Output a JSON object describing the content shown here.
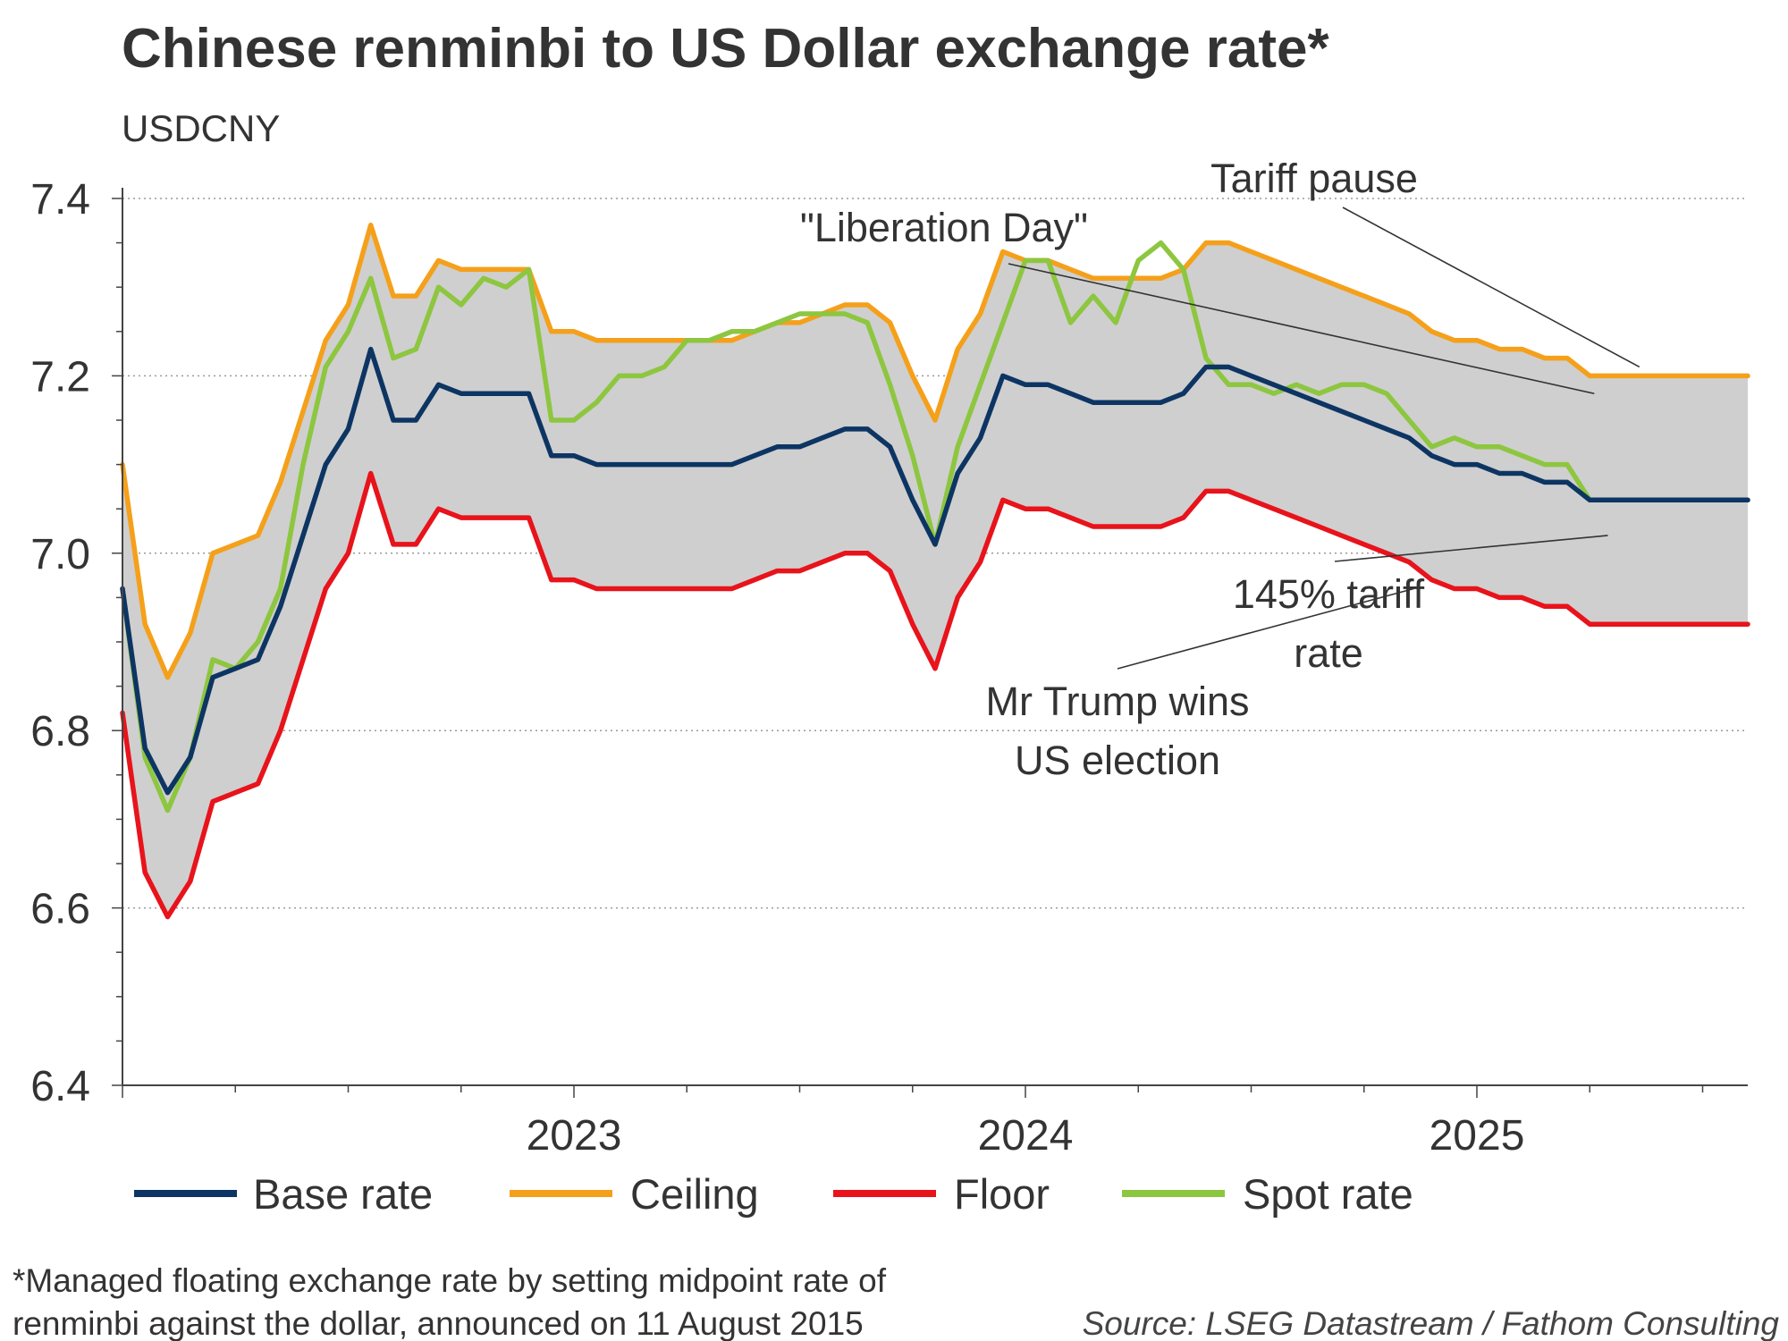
{
  "chart_data": {
    "type": "line",
    "title": "Chinese renminbi to US Dollar exchange rate*",
    "subtitle": "USDCNY",
    "xlabel": "",
    "ylabel": "",
    "ylim": [
      6.4,
      7.4
    ],
    "y_ticks": [
      "6.4",
      "6.6",
      "6.8",
      "7.0",
      "7.2",
      "7.4"
    ],
    "x_ticks": [
      "2023",
      "2024",
      "2025"
    ],
    "x_range": [
      2022.0,
      2025.6
    ],
    "grid": "horizontal dotted",
    "legend_position": "bottom",
    "fill_between": [
      "Floor",
      "Ceiling"
    ],
    "colors": {
      "base": "#0d3563",
      "ceiling": "#f5a01a",
      "floor": "#e8131b",
      "spot": "#8dc63f",
      "band": "#cfcfcf",
      "grid": "#9a9a9a",
      "axis": "#444444",
      "text": "#333333"
    },
    "x": [
      2022.0,
      2022.05,
      2022.1,
      2022.15,
      2022.2,
      2022.25,
      2022.3,
      2022.35,
      2022.4,
      2022.45,
      2022.5,
      2022.55,
      2022.6,
      2022.65,
      2022.7,
      2022.75,
      2022.8,
      2022.85,
      2022.9,
      2022.95,
      2023.0,
      2023.05,
      2023.1,
      2023.15,
      2023.2,
      2023.25,
      2023.3,
      2023.35,
      2023.4,
      2023.45,
      2023.5,
      2023.55,
      2023.6,
      2023.65,
      2023.7,
      2023.75,
      2023.8,
      2023.85,
      2023.9,
      2023.95,
      2024.0,
      2024.05,
      2024.1,
      2024.15,
      2024.2,
      2024.25,
      2024.3,
      2024.35,
      2024.4,
      2024.45,
      2024.5,
      2024.55,
      2024.6,
      2024.65,
      2024.7,
      2024.75,
      2024.8,
      2024.85,
      2024.9,
      2024.95,
      2025.0,
      2025.05,
      2025.1,
      2025.15,
      2025.2,
      2025.25,
      2025.3,
      2025.35,
      2025.4,
      2025.45,
      2025.5,
      2025.55,
      2025.6
    ],
    "series": [
      {
        "name": "Base rate",
        "color": "#0d3563",
        "values": [
          6.96,
          6.78,
          6.73,
          6.77,
          6.86,
          6.87,
          6.88,
          6.94,
          7.02,
          7.1,
          7.14,
          7.23,
          7.15,
          7.15,
          7.19,
          7.18,
          7.18,
          7.18,
          7.18,
          7.11,
          7.11,
          7.1,
          7.1,
          7.1,
          7.1,
          7.1,
          7.1,
          7.1,
          7.11,
          7.12,
          7.12,
          7.13,
          7.14,
          7.14,
          7.12,
          7.06,
          7.01,
          7.09,
          7.13,
          7.2,
          7.19,
          7.19,
          7.18,
          7.17,
          7.17,
          7.17,
          7.17,
          7.18,
          7.21,
          7.21,
          7.2,
          7.19,
          7.18,
          7.17,
          7.16,
          7.15,
          7.14,
          7.13,
          7.11,
          7.1,
          7.1,
          7.09,
          7.09,
          7.08,
          7.08,
          7.06,
          7.06,
          7.06,
          7.06,
          7.06,
          7.06,
          7.06,
          7.06
        ]
      },
      {
        "name": "Ceiling",
        "color": "#f5a01a",
        "values": [
          7.1,
          6.92,
          6.86,
          6.91,
          7.0,
          7.01,
          7.02,
          7.08,
          7.16,
          7.24,
          7.28,
          7.37,
          7.29,
          7.29,
          7.33,
          7.32,
          7.32,
          7.32,
          7.32,
          7.25,
          7.25,
          7.24,
          7.24,
          7.24,
          7.24,
          7.24,
          7.24,
          7.24,
          7.25,
          7.26,
          7.26,
          7.27,
          7.28,
          7.28,
          7.26,
          7.2,
          7.15,
          7.23,
          7.27,
          7.34,
          7.33,
          7.33,
          7.32,
          7.31,
          7.31,
          7.31,
          7.31,
          7.32,
          7.35,
          7.35,
          7.34,
          7.33,
          7.32,
          7.31,
          7.3,
          7.29,
          7.28,
          7.27,
          7.25,
          7.24,
          7.24,
          7.23,
          7.23,
          7.22,
          7.22,
          7.2,
          7.2,
          7.2,
          7.2,
          7.2,
          7.2,
          7.2,
          7.2
        ]
      },
      {
        "name": "Floor",
        "color": "#e8131b",
        "values": [
          6.82,
          6.64,
          6.59,
          6.63,
          6.72,
          6.73,
          6.74,
          6.8,
          6.88,
          6.96,
          7.0,
          7.09,
          7.01,
          7.01,
          7.05,
          7.04,
          7.04,
          7.04,
          7.04,
          6.97,
          6.97,
          6.96,
          6.96,
          6.96,
          6.96,
          6.96,
          6.96,
          6.96,
          6.97,
          6.98,
          6.98,
          6.99,
          7.0,
          7.0,
          6.98,
          6.92,
          6.87,
          6.95,
          6.99,
          7.06,
          7.05,
          7.05,
          7.04,
          7.03,
          7.03,
          7.03,
          7.03,
          7.04,
          7.07,
          7.07,
          7.06,
          7.05,
          7.04,
          7.03,
          7.02,
          7.01,
          7.0,
          6.99,
          6.97,
          6.96,
          6.96,
          6.95,
          6.95,
          6.94,
          6.94,
          6.92,
          6.92,
          6.92,
          6.92,
          6.92,
          6.92,
          6.92,
          6.92
        ]
      },
      {
        "name": "Spot rate",
        "color": "#8dc63f",
        "values": [
          6.96,
          6.77,
          6.71,
          6.77,
          6.88,
          6.87,
          6.9,
          6.96,
          7.1,
          7.21,
          7.25,
          7.31,
          7.22,
          7.23,
          7.3,
          7.28,
          7.31,
          7.3,
          7.32,
          7.15,
          7.15,
          7.17,
          7.2,
          7.2,
          7.21,
          7.24,
          7.24,
          7.25,
          7.25,
          7.26,
          7.27,
          7.27,
          7.27,
          7.26,
          7.19,
          7.11,
          7.01,
          7.12,
          7.19,
          7.26,
          7.33,
          7.33,
          7.26,
          7.29,
          7.26,
          7.33,
          7.35,
          7.32,
          7.22,
          7.19,
          7.19,
          7.18,
          7.19,
          7.18,
          7.19,
          7.19,
          7.18,
          7.15,
          7.12,
          7.13,
          7.12,
          7.12,
          7.11,
          7.1,
          7.1,
          7.06,
          7.06,
          7.06,
          7.06,
          7.06,
          7.06,
          7.06,
          7.06
        ]
      }
    ],
    "annotations": [
      {
        "id": "liberation",
        "label": "\"Liberation Day\"",
        "x": 2025.26,
        "y": 7.18
      },
      {
        "id": "pause",
        "label": "Tariff pause",
        "x": 2025.36,
        "y": 7.21
      },
      {
        "id": "tariff145",
        "label": "145% tariff rate",
        "x": 2025.29,
        "y": 7.02
      },
      {
        "id": "election",
        "label": "Mr Trump wins US election",
        "x": 2024.86,
        "y": 6.96
      }
    ]
  },
  "footnote": {
    "line1": "*Managed floating exchange rate by setting midpoint rate of",
    "line2": "renminbi against the dollar, announced on 11 August 2015"
  },
  "source": "Source: LSEG Datastream / Fathom Consulting",
  "annotation_text": {
    "liberation": "\"Liberation Day\"",
    "pause": "Tariff pause",
    "tariff145_1": "145% tariff",
    "tariff145_2": "rate",
    "election_1": "Mr Trump wins",
    "election_2": "US election"
  }
}
